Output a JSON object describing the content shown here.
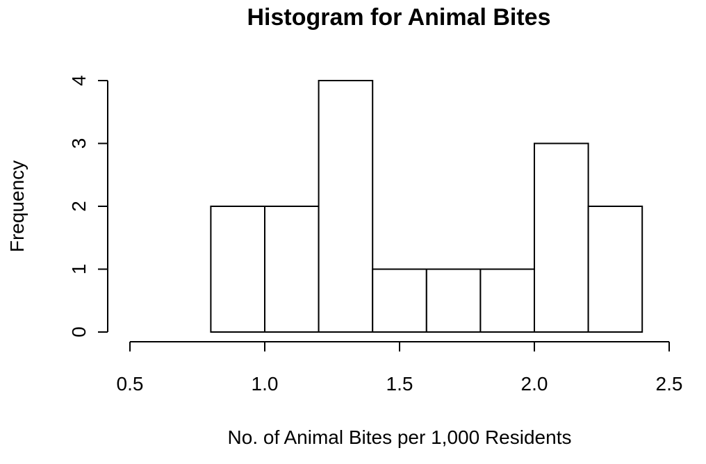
{
  "chart_data": {
    "type": "bar",
    "title": "Histogram for Animal Bites",
    "xlabel": "No. of Animal Bites per 1,000 Residents",
    "ylabel": "Frequency",
    "bins": [
      {
        "start": 0.8,
        "end": 1.0,
        "count": 2
      },
      {
        "start": 1.0,
        "end": 1.2,
        "count": 2
      },
      {
        "start": 1.2,
        "end": 1.4,
        "count": 4
      },
      {
        "start": 1.4,
        "end": 1.6,
        "count": 1
      },
      {
        "start": 1.6,
        "end": 1.8,
        "count": 1
      },
      {
        "start": 1.8,
        "end": 2.0,
        "count": 1
      },
      {
        "start": 2.0,
        "end": 2.2,
        "count": 3
      },
      {
        "start": 2.2,
        "end": 2.4,
        "count": 2
      }
    ],
    "x_ticks": [
      "0.5",
      "1.0",
      "1.5",
      "2.0",
      "2.5"
    ],
    "y_ticks": [
      "0",
      "1",
      "2",
      "3",
      "4"
    ],
    "xlim": [
      0.5,
      2.5
    ],
    "ylim": [
      0,
      4
    ],
    "grid": false
  }
}
